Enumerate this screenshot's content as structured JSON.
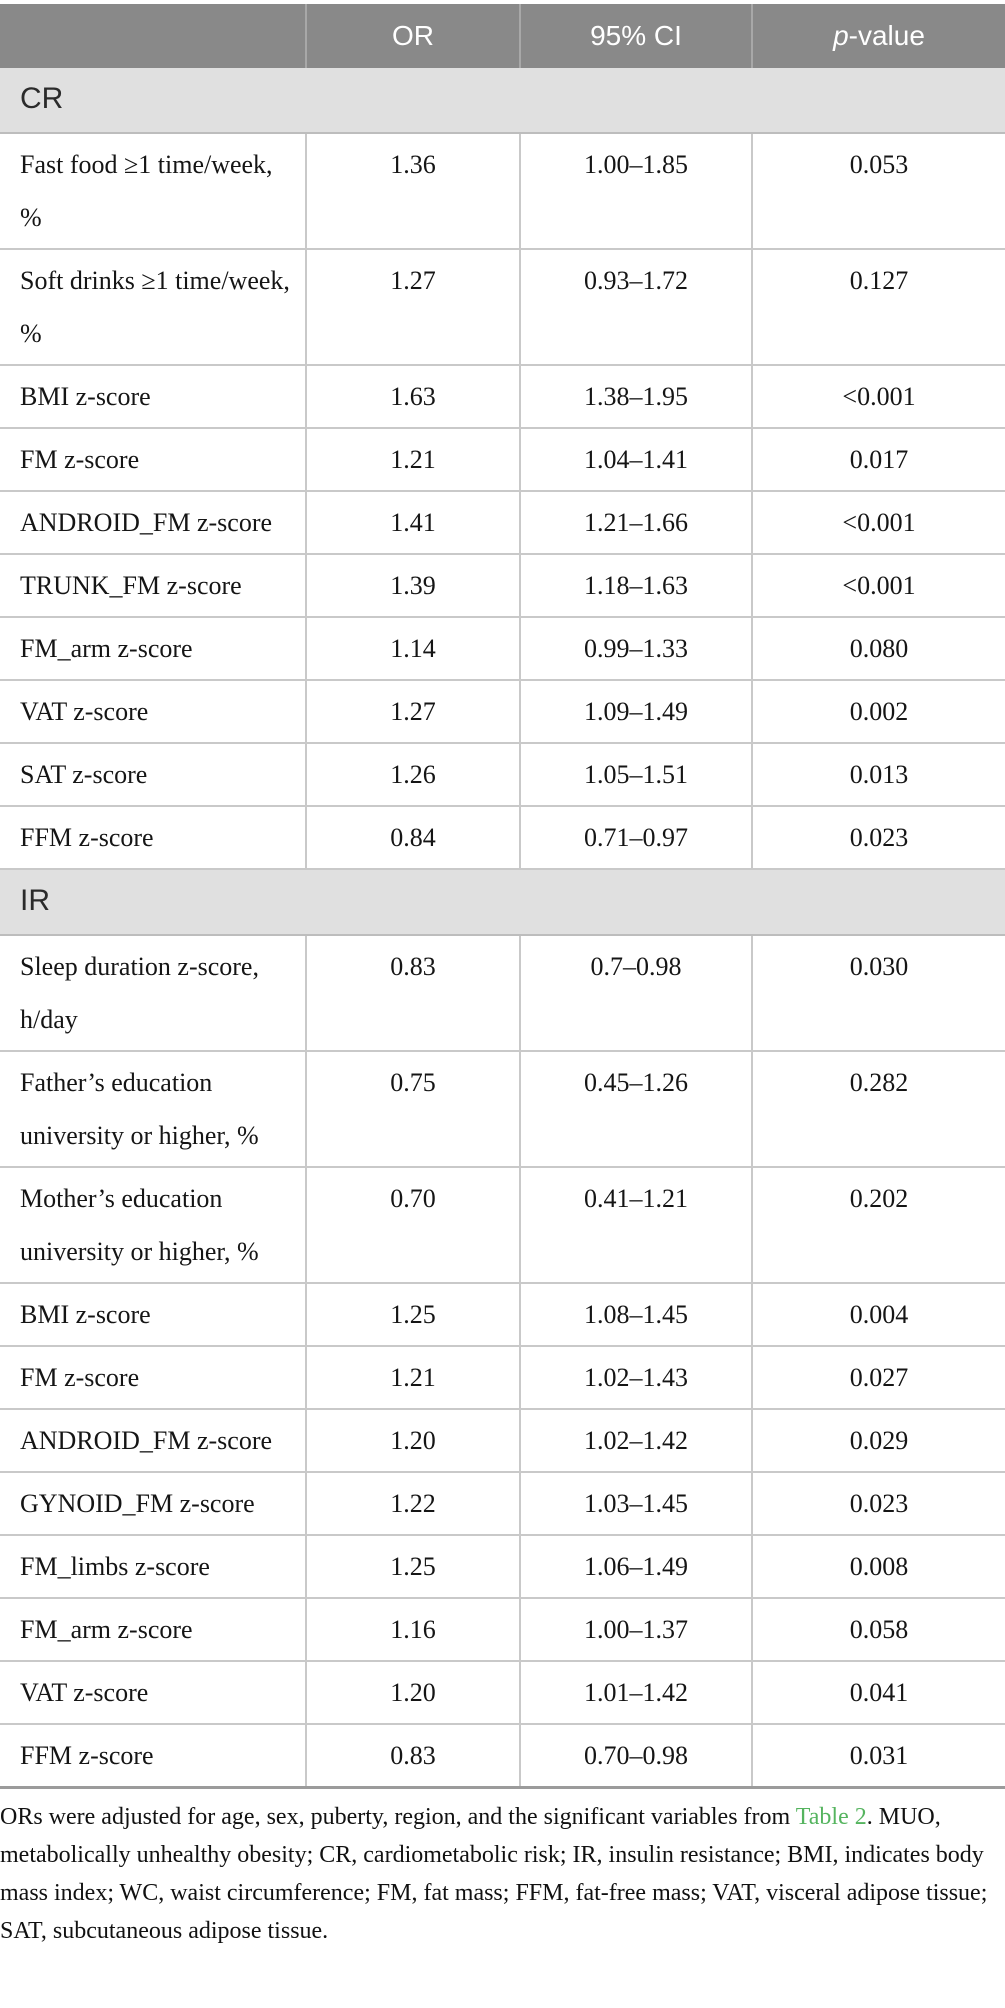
{
  "table": {
    "header": {
      "variable": "",
      "or": "OR",
      "ci": "95% CI",
      "p_italic": "p",
      "p_rest": "-value"
    },
    "sections": [
      {
        "label": "CR",
        "rows": [
          {
            "variable": "Fast food ≥1 time/week, %",
            "or": "1.36",
            "ci": "1.00–1.85",
            "p": "0.053"
          },
          {
            "variable": "Soft drinks ≥1 time/week, %",
            "or": "1.27",
            "ci": "0.93–1.72",
            "p": "0.127"
          },
          {
            "variable": "BMI z-score",
            "or": "1.63",
            "ci": "1.38–1.95",
            "p": "<0.001"
          },
          {
            "variable": "FM z-score",
            "or": "1.21",
            "ci": "1.04–1.41",
            "p": "0.017"
          },
          {
            "variable": "ANDROID_FM z-score",
            "or": "1.41",
            "ci": "1.21–1.66",
            "p": "<0.001"
          },
          {
            "variable": "TRUNK_FM z-score",
            "or": "1.39",
            "ci": "1.18–1.63",
            "p": "<0.001"
          },
          {
            "variable": "FM_arm z-score",
            "or": "1.14",
            "ci": "0.99–1.33",
            "p": "0.080"
          },
          {
            "variable": "VAT z-score",
            "or": "1.27",
            "ci": "1.09–1.49",
            "p": "0.002"
          },
          {
            "variable": "SAT z-score",
            "or": "1.26",
            "ci": "1.05–1.51",
            "p": "0.013"
          },
          {
            "variable": "FFM z-score",
            "or": "0.84",
            "ci": "0.71–0.97",
            "p": "0.023"
          }
        ]
      },
      {
        "label": "IR",
        "rows": [
          {
            "variable": "Sleep duration z-score, h/day",
            "or": "0.83",
            "ci": "0.7–0.98",
            "p": "0.030"
          },
          {
            "variable": "Father’s education university or higher, %",
            "or": "0.75",
            "ci": "0.45–1.26",
            "p": "0.282"
          },
          {
            "variable": "Mother’s education university or higher, %",
            "or": "0.70",
            "ci": "0.41–1.21",
            "p": "0.202"
          },
          {
            "variable": "BMI z-score",
            "or": "1.25",
            "ci": "1.08–1.45",
            "p": "0.004"
          },
          {
            "variable": "FM z-score",
            "or": "1.21",
            "ci": "1.02–1.43",
            "p": "0.027"
          },
          {
            "variable": "ANDROID_FM z-score",
            "or": "1.20",
            "ci": "1.02–1.42",
            "p": "0.029"
          },
          {
            "variable": "GYNOID_FM z-score",
            "or": "1.22",
            "ci": "1.03–1.45",
            "p": "0.023"
          },
          {
            "variable": "FM_limbs z-score",
            "or": "1.25",
            "ci": "1.06–1.49",
            "p": "0.008"
          },
          {
            "variable": "FM_arm z-score",
            "or": "1.16",
            "ci": "1.00–1.37",
            "p": "0.058"
          },
          {
            "variable": "VAT z-score",
            "or": "1.20",
            "ci": "1.01–1.42",
            "p": "0.041"
          },
          {
            "variable": "FFM z-score",
            "or": "0.83",
            "ci": "0.70–0.98",
            "p": "0.031"
          }
        ]
      }
    ]
  },
  "footnote": {
    "before_link": "ORs were adjusted for age, sex, puberty, region, and the significant variables from ",
    "link": "Table 2",
    "after_link": ". MUO, metabolically unhealthy obesity; CR, cardiometabolic risk; IR, insulin resistance; BMI, indicates body mass index; WC, waist circumference; FM, fat mass; FFM, fat-free mass; VAT, visceral adipose tissue; SAT, subcutaneous adipose tissue."
  },
  "colors": {
    "header_bg": "#898989",
    "header_text": "#ffffff",
    "header_divider": "#a8a8a8",
    "section_bg": "#e0e0e0",
    "row_border": "#c9c9c9",
    "table_bottom_border": "#9b9b9b",
    "link_green": "#55b45f"
  }
}
